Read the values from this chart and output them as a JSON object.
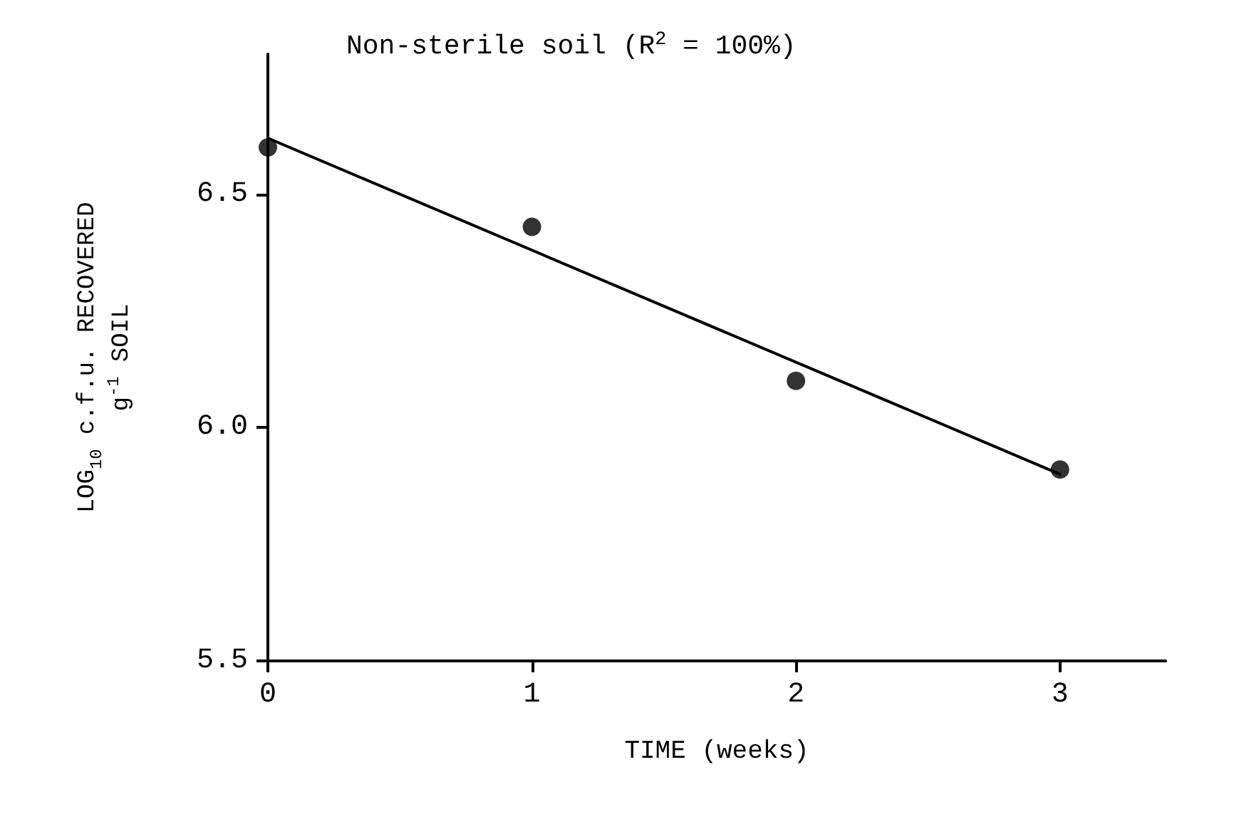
{
  "chart_data": {
    "type": "scatter",
    "title": "Non-sterile soil (R$^{2}$ = 100%)",
    "xlabel": "TIME (weeks)",
    "ylabel": "LOG$_{10}$ c.f.u. RECOVERED\ng$^{-1}$ SOIL",
    "x": [
      0,
      1,
      2,
      3
    ],
    "xlim": [
      0,
      3.4
    ],
    "xticks": [
      0,
      1,
      2,
      3
    ],
    "ylim": [
      5.5,
      6.8
    ],
    "yticks": [
      5.5,
      {
        "value": 6,
        "label": "6.0"
      },
      6.5
    ],
    "grid": false,
    "marker": "circle",
    "series": [
      {
        "color": "#000000",
        "values": [
          6.6,
          6.43,
          6.1,
          5.91
        ]
      },
      {
        "type": "line",
        "color": "#000000",
        "x": [
          0,
          3
        ],
        "values": [
          6.62,
          5.9
        ],
        "marker": "none",
        "line_style": "solid"
      }
    ]
  }
}
